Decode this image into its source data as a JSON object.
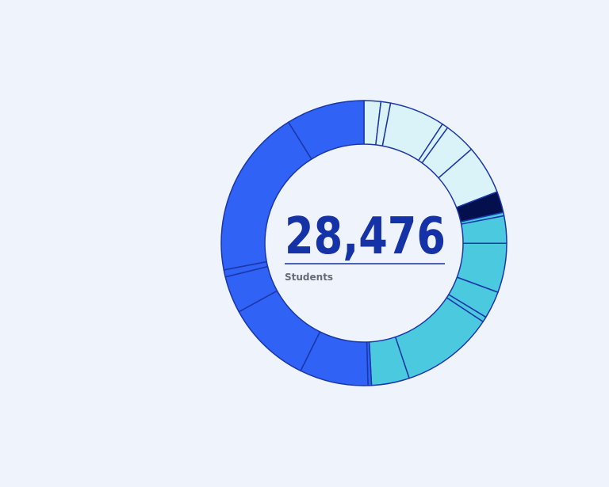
{
  "chart_data": {
    "type": "donut",
    "total": "28,476",
    "label": "Students",
    "values": [
      1.9,
      1.1,
      6.3,
      0.7,
      3.6,
      5.6,
      2.4,
      0.4,
      3.1,
      5.6,
      3.1,
      0.6,
      10.6,
      4.3,
      0.4,
      7.8,
      9.7,
      4.2,
      0.8,
      19.2,
      8.9
    ],
    "colors": [
      "#daf3f8",
      "#daf3f8",
      "#daf3f8",
      "#daf3f8",
      "#daf3f8",
      "#daf3f8",
      "#04104e",
      "#4bc9df",
      "#4bc9df",
      "#4bc9df",
      "#4bc9df",
      "#4bc9df",
      "#4bc9df",
      "#4bc9df",
      "#2f62f5",
      "#2f62f5",
      "#2f62f5",
      "#2f62f5",
      "#2f62f5",
      "#2f62f5",
      "#2f62f5"
    ]
  }
}
